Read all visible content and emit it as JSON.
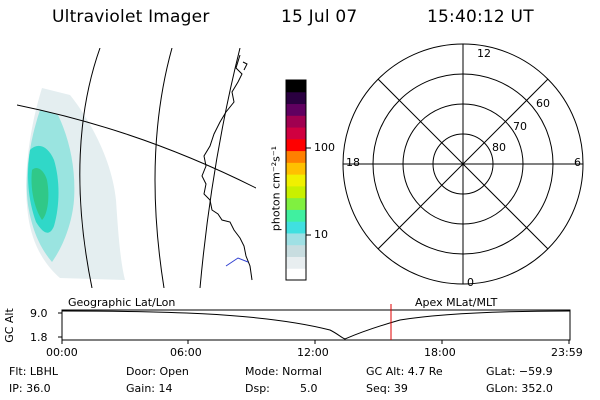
{
  "header": {
    "title": "Ultraviolet Imager",
    "date": "15 Jul 07",
    "time": "15:40:12 UT"
  },
  "colorbar": {
    "unit_label": "photon cm⁻²s⁻¹",
    "ticks": [
      "100",
      "10"
    ],
    "colors": [
      "#ffffff",
      "#e8eef0",
      "#c8dde0",
      "#9fe0e4",
      "#40e0e0",
      "#40f0a0",
      "#80f040",
      "#c8f000",
      "#f0f000",
      "#ffc000",
      "#ff8000",
      "#ff0000",
      "#d00040",
      "#a00050",
      "#600060",
      "#2a0040",
      "#000000"
    ]
  },
  "polar_plot": {
    "top_label": "12",
    "bottom_label": "0",
    "left_label": "18",
    "right_label": "6",
    "lat_labels": [
      "60",
      "70",
      "80"
    ]
  },
  "timeline": {
    "left_title": "Geographic Lat/Lon",
    "right_title": "Apex MLat/MLT",
    "y_axis_label": "GC Alt",
    "y_ticks": [
      "9.0",
      "1.8"
    ],
    "x_ticks": [
      "00:00",
      "06:00",
      "12:00",
      "18:00",
      "23:59"
    ],
    "current_time_marker_color": "#e00000"
  },
  "info": {
    "flt": "Flt: LBHL",
    "door": "Door: Open",
    "mode": "Mode: Normal",
    "gc_alt": "GC Alt: 4.7 Re",
    "glat": "GLat: −59.9",
    "ip": "IP: 36.0",
    "gain": "Gain: 14",
    "dsp_label": "Dsp:",
    "dsp_value": "5.0",
    "seq": "Seq: 39",
    "glon": "GLon: 352.0"
  }
}
